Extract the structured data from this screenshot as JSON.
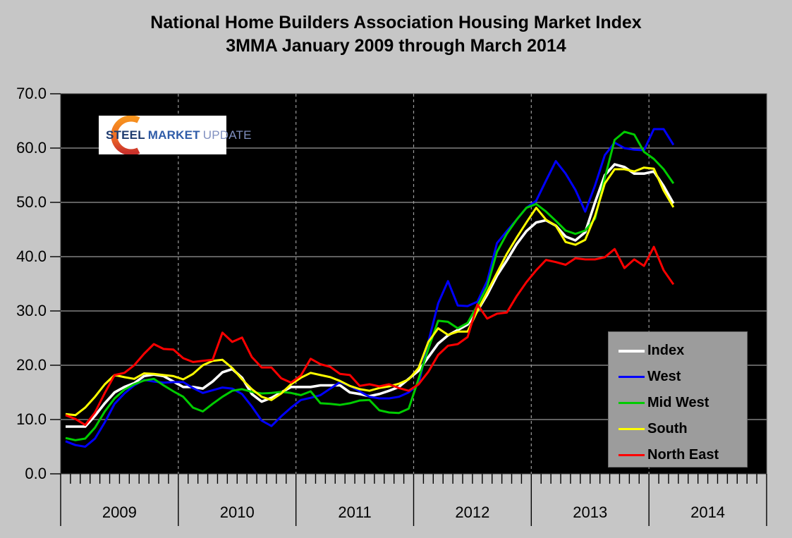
{
  "title": {
    "line1": "National Home Builders Association Housing Market Index",
    "line2": "3MMA January 2009 through March 2014"
  },
  "logo": {
    "word1": "STEEL",
    "word2": "MARKET",
    "word3": "UPDATE"
  },
  "colors": {
    "page_bg": "#c6c6c6",
    "plot_bg": "#000000",
    "gridline": "#9a9a9a",
    "axis": "#000000",
    "legend_bg": "#9c9c9c",
    "logo_orange_top": "#f7941e",
    "logo_orange_bottom": "#c9312b"
  },
  "chart_data": {
    "type": "line",
    "title": "National Home Builders Association Housing Market Index 3MMA January 2009 through March 2014",
    "x_start": "2009-01",
    "x_end": "2014-03",
    "x_axis_years": [
      "2009",
      "2010",
      "2011",
      "2012",
      "2013",
      "2014"
    ],
    "x_axis_total_months": 72,
    "points_per_series": 63,
    "ylim": [
      0,
      70
    ],
    "y_tick_step": 10,
    "y_tick_labels": [
      "0.0",
      "10.0",
      "20.0",
      "30.0",
      "40.0",
      "50.0",
      "60.0",
      "70.0"
    ],
    "grid": {
      "horizontal": true,
      "vertical_year_dashed": true
    },
    "legend_position": "inside-bottom-right",
    "series": [
      {
        "name": "Index",
        "color": "#ffffff",
        "values": [
          8.7,
          8.7,
          8.7,
          10.7,
          13.0,
          15.0,
          16.0,
          16.7,
          18.0,
          18.3,
          18.0,
          17.0,
          16.0,
          16.0,
          15.7,
          17.0,
          18.7,
          19.3,
          17.7,
          14.7,
          13.3,
          14.0,
          15.0,
          16.0,
          16.0,
          16.0,
          16.3,
          16.3,
          16.3,
          15.0,
          14.7,
          14.3,
          14.7,
          15.3,
          16.0,
          17.5,
          19.0,
          21.5,
          24.0,
          25.5,
          26.5,
          27.5,
          30.0,
          33.0,
          36.5,
          39.3,
          42.3,
          44.7,
          46.3,
          46.7,
          45.7,
          43.7,
          43.0,
          44.5,
          50.0,
          55.0,
          57.0,
          56.5,
          55.3,
          55.3,
          55.7,
          53.0,
          49.8
        ]
      },
      {
        "name": "West",
        "color": "#0000ff",
        "values": [
          6.0,
          5.3,
          5.0,
          6.5,
          9.5,
          12.9,
          14.8,
          16.3,
          17.3,
          17.0,
          16.8,
          16.9,
          16.9,
          15.8,
          14.9,
          15.4,
          15.9,
          15.7,
          14.7,
          12.4,
          9.8,
          8.8,
          10.6,
          12.2,
          13.6,
          14.0,
          14.5,
          15.7,
          16.9,
          16.2,
          15.2,
          14.2,
          13.9,
          13.9,
          14.2,
          15.0,
          16.5,
          24.3,
          31.4,
          35.5,
          31.0,
          30.9,
          31.7,
          35.5,
          42.5,
          44.7,
          46.8,
          49.0,
          50.3,
          54.0,
          57.6,
          55.3,
          52.3,
          48.3,
          53.1,
          58.7,
          61.0,
          60.0,
          59.7,
          59.6,
          63.5,
          63.5,
          60.6
        ]
      },
      {
        "name": "Mid West",
        "color": "#00cc00",
        "values": [
          6.6,
          6.2,
          6.5,
          8.5,
          11.5,
          13.9,
          15.5,
          16.5,
          17.2,
          17.5,
          16.3,
          15.2,
          14.2,
          12.2,
          11.5,
          12.9,
          14.2,
          15.3,
          15.6,
          15.1,
          14.8,
          14.9,
          15.1,
          14.9,
          14.5,
          15.2,
          13.0,
          12.9,
          12.7,
          13.0,
          13.5,
          13.6,
          11.7,
          11.3,
          11.2,
          12.0,
          17.5,
          23.0,
          28.2,
          28.0,
          26.8,
          27.8,
          31.0,
          34.5,
          40.9,
          44.2,
          46.8,
          49.0,
          49.7,
          48.3,
          46.6,
          44.8,
          44.2,
          44.8,
          47.0,
          54.5,
          61.5,
          63.0,
          62.5,
          59.3,
          58.0,
          56.1,
          53.5
        ]
      },
      {
        "name": "South",
        "color": "#ffff00",
        "values": [
          11.0,
          10.8,
          12.2,
          14.2,
          16.5,
          18.2,
          17.8,
          17.5,
          18.5,
          18.4,
          18.2,
          18.0,
          17.4,
          18.4,
          20.0,
          20.8,
          21.0,
          19.5,
          17.4,
          15.6,
          14.2,
          13.6,
          14.8,
          16.5,
          17.7,
          18.6,
          18.2,
          17.8,
          17.1,
          16.2,
          15.6,
          15.3,
          15.8,
          16.1,
          16.6,
          17.4,
          19.5,
          24.3,
          26.8,
          25.6,
          26.2,
          26.2,
          30.0,
          33.5,
          37.0,
          40.5,
          43.5,
          46.3,
          49.0,
          46.8,
          45.7,
          42.7,
          42.2,
          43.1,
          47.5,
          53.5,
          56.1,
          56.1,
          55.7,
          56.4,
          56.2,
          52.2,
          49.1
        ]
      },
      {
        "name": "North East",
        "color": "#ff0000",
        "values": [
          10.8,
          10.1,
          9.0,
          11.3,
          14.9,
          18.2,
          18.6,
          20.0,
          22.1,
          23.9,
          23.0,
          22.9,
          21.3,
          20.6,
          20.8,
          21.0,
          26.0,
          24.3,
          25.1,
          21.5,
          19.6,
          19.6,
          17.6,
          16.8,
          18.1,
          21.2,
          20.2,
          19.7,
          18.4,
          18.2,
          16.2,
          16.5,
          16.1,
          16.5,
          15.8,
          15.3,
          16.5,
          18.8,
          21.9,
          23.6,
          23.9,
          25.2,
          31.2,
          28.6,
          29.5,
          29.7,
          32.7,
          35.3,
          37.5,
          39.4,
          39.0,
          38.5,
          39.7,
          39.5,
          39.5,
          39.9,
          41.4,
          37.9,
          39.5,
          38.3,
          41.8,
          37.5,
          34.9
        ]
      }
    ]
  }
}
